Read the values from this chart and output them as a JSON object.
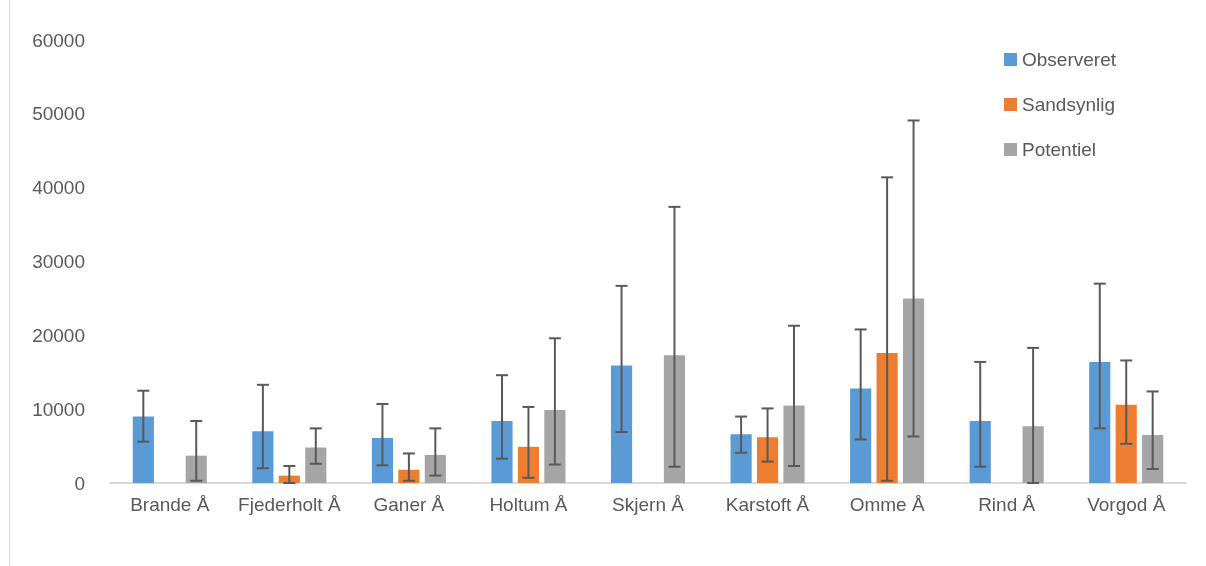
{
  "chart_data": {
    "type": "bar",
    "categories": [
      "Brande Å",
      "Fjederholt Å",
      "Ganer Å",
      "Holtum Å",
      "Skjern Å",
      "Karstoft Å",
      "Omme Å",
      "Rind Å",
      "Vorgod Å"
    ],
    "series": [
      {
        "name": "Observeret",
        "color": "#5b9bd5",
        "values": [
          9000,
          7000,
          6100,
          8400,
          15900,
          6600,
          12800,
          8400,
          16400
        ],
        "errors": [
          [
            5600,
            12500
          ],
          [
            2000,
            13300
          ],
          [
            2400,
            10700
          ],
          [
            3300,
            14600
          ],
          [
            6900,
            26700
          ],
          [
            4100,
            9000
          ],
          [
            5900,
            20800
          ],
          [
            2200,
            16400
          ],
          [
            7400,
            27000
          ]
        ]
      },
      {
        "name": "Sandsynlig",
        "color": "#ed7d31",
        "values": [
          null,
          1000,
          1800,
          4900,
          null,
          6200,
          17600,
          null,
          10600
        ],
        "errors": [
          null,
          [
            0,
            2300
          ],
          [
            300,
            4000
          ],
          [
            700,
            10300
          ],
          null,
          [
            2900,
            10100
          ],
          [
            300,
            41400
          ],
          null,
          [
            5300,
            16600
          ]
        ]
      },
      {
        "name": "Potentiel",
        "color": "#a5a5a5",
        "values": [
          3700,
          4800,
          3800,
          9900,
          17300,
          10500,
          25000,
          7700,
          6500
        ],
        "errors": [
          [
            300,
            8400
          ],
          [
            2600,
            7400
          ],
          [
            1000,
            7400
          ],
          [
            2500,
            19600
          ],
          [
            2200,
            37400
          ],
          [
            2300,
            21300
          ],
          [
            6300,
            49100
          ],
          [
            0,
            18300
          ],
          [
            1900,
            12400
          ]
        ]
      }
    ],
    "ylim": [
      0,
      60000
    ],
    "yticks": [
      0,
      10000,
      20000,
      30000,
      40000,
      50000,
      60000
    ],
    "grid": false,
    "legend": "top right"
  }
}
